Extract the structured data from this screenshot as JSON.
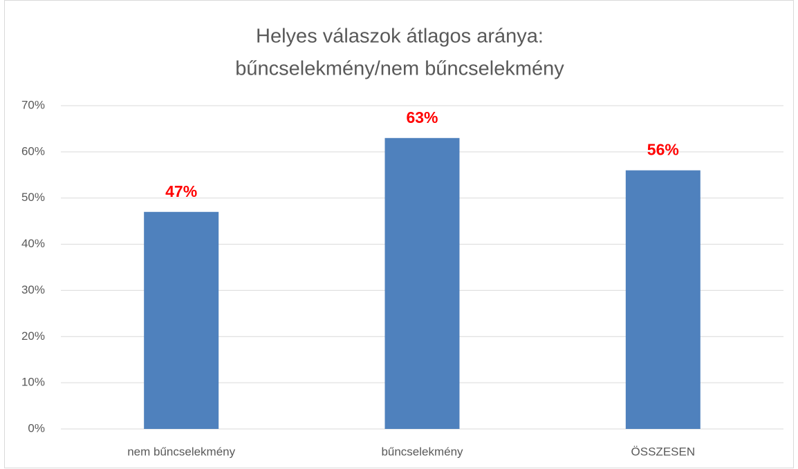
{
  "chart_data": {
    "type": "bar",
    "title": [
      "Helyes válaszok átlagos aránya:",
      "bűncselekmény/nem bűncselekmény"
    ],
    "categories": [
      "nem bűncselekmény",
      "bűncselekmény",
      "ÖSSZESEN"
    ],
    "values": [
      47,
      63,
      56
    ],
    "value_labels": [
      "47%",
      "63%",
      "56%"
    ],
    "color": "#4f81bd",
    "value_label_color": "#ff0000",
    "ylim": [
      0,
      70
    ],
    "yticks": [
      {
        "value": 0,
        "label": "0%"
      },
      {
        "value": 10,
        "label": "10%"
      },
      {
        "value": 20,
        "label": "20%"
      },
      {
        "value": 30,
        "label": "30%"
      },
      {
        "value": 40,
        "label": "40%"
      },
      {
        "value": 50,
        "label": "50%"
      },
      {
        "value": 60,
        "label": "60%"
      },
      {
        "value": 70,
        "label": "70%"
      }
    ],
    "grid": true
  }
}
